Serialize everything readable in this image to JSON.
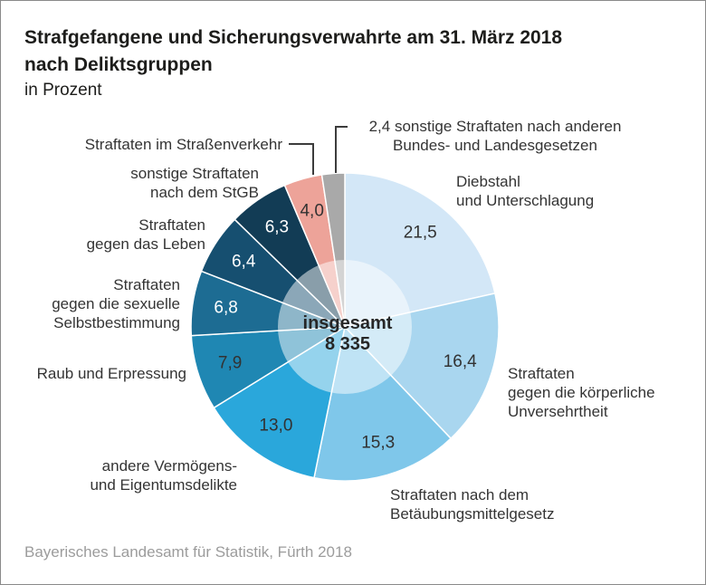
{
  "header": {
    "title_line1": "Strafgefangene und Sicherungsverwahrte am 31. März 2018",
    "title_line2": "nach Deliktsgruppen",
    "subtitle": "in Prozent"
  },
  "chart_data": {
    "type": "pie",
    "title": "Strafgefangene und Sicherungsverwahrte am 31. März 2018 nach Deliktsgruppen",
    "unit": "Prozent",
    "total_label": "insgesamt",
    "total_value": "8 335",
    "center": {
      "label": "insgesamt",
      "value": "8 335"
    },
    "legend_position": "around",
    "start_angle_deg": 0,
    "direction": "clockwise",
    "slices": [
      {
        "label": "Diebstahl und Unterschlagung",
        "value": 21.5,
        "display": "21,5",
        "color": "#d3e7f7",
        "value_color": "#323232",
        "value_in_callout": false
      },
      {
        "label": "Straftaten gegen die körperliche Unversehrtheit",
        "value": 16.4,
        "display": "16,4",
        "color": "#a9d6ef",
        "value_color": "#323232",
        "value_in_callout": false
      },
      {
        "label": "Straftaten nach dem Betäubungsmittelgesetz",
        "value": 15.3,
        "display": "15,3",
        "color": "#7fc7ea",
        "value_color": "#323232",
        "value_in_callout": false
      },
      {
        "label": "andere Vermögens- und Eigentumsdelikte",
        "value": 13.0,
        "display": "13,0",
        "color": "#2aa7db",
        "value_color": "#323232",
        "value_in_callout": false
      },
      {
        "label": "Raub und Erpressung",
        "value": 7.9,
        "display": "7,9",
        "color": "#1f87b3",
        "value_color": "#323232",
        "value_in_callout": false
      },
      {
        "label": "Straftaten gegen die sexuelle Selbstbestimmung",
        "value": 6.8,
        "display": "6,8",
        "color": "#1d6c93",
        "value_color": "#ffffff",
        "value_in_callout": false
      },
      {
        "label": "Straftaten gegen das Leben",
        "value": 6.4,
        "display": "6,4",
        "color": "#164f70",
        "value_color": "#ffffff",
        "value_in_callout": false
      },
      {
        "label": "sonstige Straftaten nach dem StGB",
        "value": 6.3,
        "display": "6,3",
        "color": "#123c55",
        "value_color": "#ffffff",
        "value_in_callout": false
      },
      {
        "label": "Straftaten im Straßenverkehr",
        "value": 4.0,
        "display": "4,0",
        "color": "#eda399",
        "value_color": "#323232",
        "value_in_callout": false
      },
      {
        "label": "sonstige Straftaten nach anderen Bundes- und Landesgesetzen",
        "value": 2.4,
        "display": "2,4",
        "color": "#a9a9a9",
        "value_color": "#323232",
        "value_in_callout": true
      }
    ]
  },
  "labels": {
    "strassenverkehr": {
      "lines": [
        "Straftaten im Straßenverkehr"
      ]
    },
    "stgb": {
      "lines": [
        "sonstige Straftaten",
        "nach dem StGB"
      ]
    },
    "leben": {
      "lines": [
        "Straftaten",
        "gegen das Leben"
      ]
    },
    "sexuelle": {
      "lines": [
        "Straftaten",
        "gegen die sexuelle",
        "Selbstbestimmung"
      ]
    },
    "raub": {
      "lines": [
        "Raub und Erpressung"
      ]
    },
    "vermoegen": {
      "lines": [
        "andere Vermögens-",
        "und Eigentumsdelikte"
      ]
    },
    "diebstahl": {
      "lines": [
        "Diebstahl",
        "und Unterschlagung"
      ]
    },
    "koerperlich": {
      "lines": [
        "Straftaten",
        "gegen die körperliche",
        "Unversehrtheit"
      ]
    },
    "betaeubung": {
      "lines": [
        "Straftaten nach dem",
        "Betäubungsmittelgesetz"
      ]
    },
    "bundesgesetze": {
      "lines": [
        "2,4 sonstige Straftaten nach anderen",
        "Bundes- und Landesgesetzen"
      ]
    }
  },
  "footer": {
    "source": "Bayerisches Landesamt für Statistik, Fürth 2018"
  }
}
